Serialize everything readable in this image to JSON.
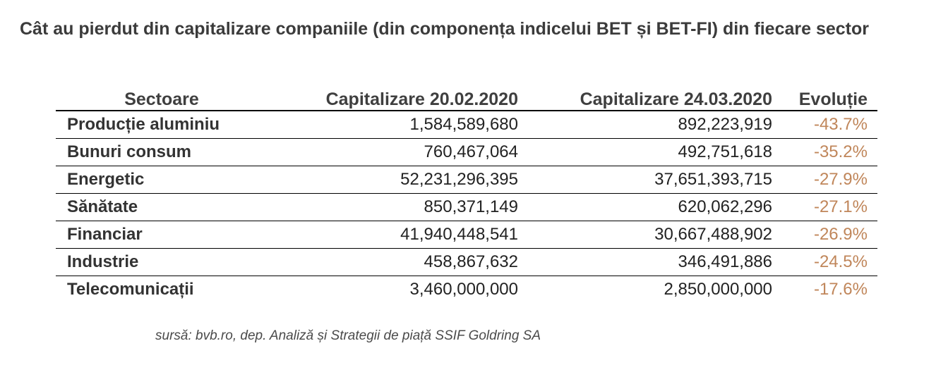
{
  "chart_data": {
    "type": "table",
    "title": "Cât au pierdut din capitalizare companiile (din componența indicelui BET și BET-FI) din fiecare sector",
    "columns": [
      "Sectoare",
      "Capitalizare 20.02.2020",
      "Capitalizare 24.03.2020",
      "Evoluție"
    ],
    "rows": [
      {
        "sector": "Producție aluminiu",
        "cap1": "1,584,589,680",
        "cap2": "892,223,919",
        "evolution": "-43.7%"
      },
      {
        "sector": "Bunuri consum",
        "cap1": "760,467,064",
        "cap2": "492,751,618",
        "evolution": "-35.2%"
      },
      {
        "sector": "Energetic",
        "cap1": "52,231,296,395",
        "cap2": "37,651,393,715",
        "evolution": "-27.9%"
      },
      {
        "sector": "Sănătate",
        "cap1": "850,371,149",
        "cap2": "620,062,296",
        "evolution": "-27.1%"
      },
      {
        "sector": "Financiar",
        "cap1": "41,940,448,541",
        "cap2": "30,667,488,902",
        "evolution": "-26.9%"
      },
      {
        "sector": "Industrie",
        "cap1": "458,867,632",
        "cap2": "346,491,886",
        "evolution": "-24.5%"
      },
      {
        "sector": "Telecomunicații",
        "cap1": "3,460,000,000",
        "cap2": "2,850,000,000",
        "evolution": "-17.6%"
      }
    ],
    "source": "sursă: bvb.ro, dep. Analiză și Strategii de piață SSIF Goldring SA",
    "colors": {
      "evolution": "#c0865a",
      "text": "#222222"
    }
  }
}
